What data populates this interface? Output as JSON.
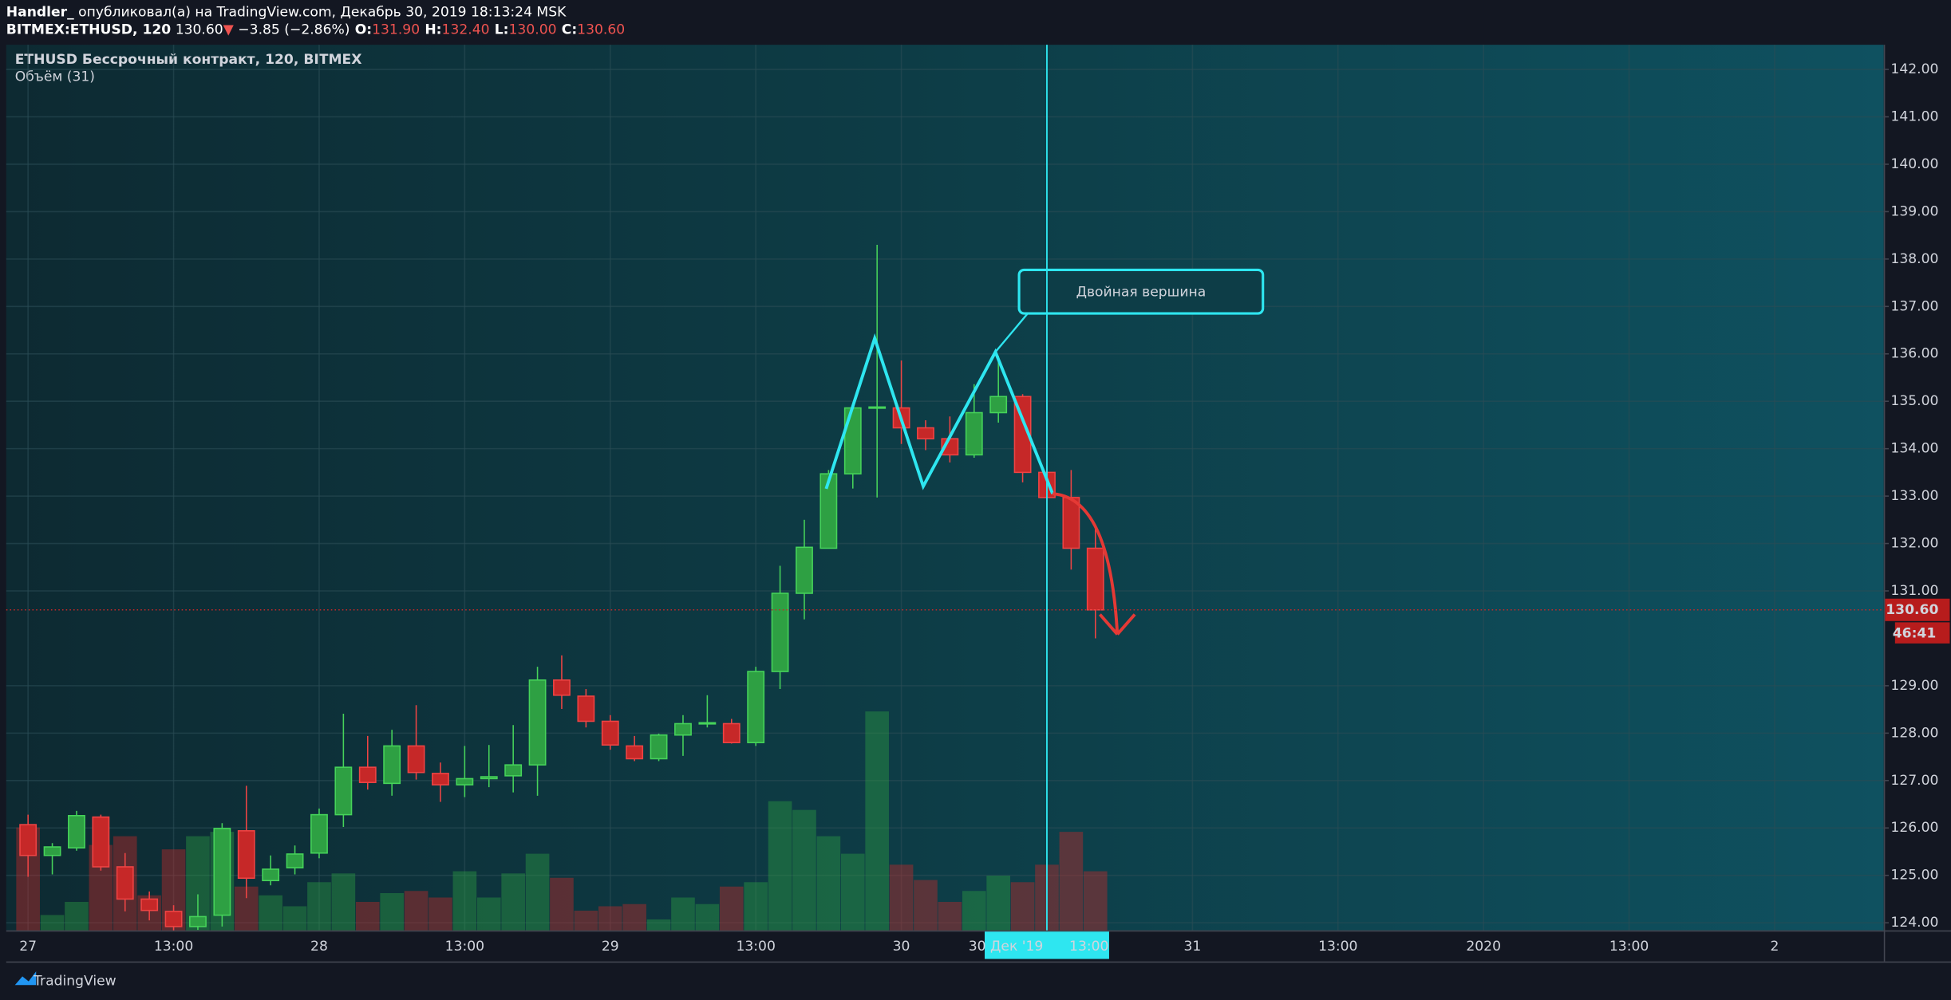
{
  "header": {
    "author": "Handler_",
    "published": "опубликовал(а) на TradingView.com, Декабрь 30, 2019 18:13:24 MSK",
    "symbol": "BITMEX:ETHUSD, 120",
    "last": "130.60",
    "arrow": "▼",
    "change": "−3.85 (−2.86%)",
    "ohlc": [
      {
        "key": "O:",
        "value": "131.90"
      },
      {
        "key": "H:",
        "value": "132.40"
      },
      {
        "key": "L:",
        "value": "130.00"
      },
      {
        "key": "C:",
        "value": "130.60"
      }
    ]
  },
  "chart_data": {
    "type": "candlestick",
    "title": "ETHUSD Бессрочный контракт, 120, BITMEX",
    "volume_title": "Объём (31)",
    "open": [
      126.07,
      125.42,
      125.58,
      126.23,
      125.18,
      124.5,
      124.24,
      123.92,
      124.16,
      125.94,
      124.89,
      125.16,
      125.47,
      126.28,
      127.28,
      126.94,
      127.73,
      127.15,
      126.91,
      127.04,
      127.1,
      127.33,
      129.12,
      128.78,
      128.25,
      127.73,
      127.46,
      127.96,
      128.2,
      128.2,
      127.8,
      129.3,
      130.95,
      131.9,
      133.47,
      134.86,
      134.86,
      134.44,
      134.21,
      133.87,
      134.76,
      135.1,
      133.5,
      132.97,
      131.9
    ],
    "high": [
      126.28,
      125.68,
      126.36,
      126.28,
      125.47,
      124.66,
      124.37,
      124.6,
      126.1,
      126.89,
      125.42,
      125.63,
      126.41,
      128.41,
      127.94,
      128.07,
      128.59,
      127.38,
      127.73,
      127.75,
      128.17,
      129.4,
      129.64,
      128.93,
      128.38,
      127.94,
      127.99,
      128.38,
      128.8,
      128.3,
      129.4,
      131.53,
      132.5,
      133.55,
      134.94,
      138.3,
      135.86,
      134.6,
      134.68,
      135.36,
      135.96,
      135.15,
      133.63,
      133.55,
      132.4
    ],
    "low": [
      124.97,
      125.02,
      125.52,
      125.1,
      124.24,
      124.05,
      123.84,
      123.85,
      123.92,
      124.52,
      124.79,
      125.02,
      125.36,
      126.02,
      126.81,
      126.68,
      127.02,
      126.55,
      126.65,
      126.86,
      126.75,
      126.68,
      128.51,
      128.12,
      127.65,
      127.41,
      127.41,
      127.52,
      128.12,
      127.78,
      127.73,
      128.93,
      130.4,
      131.9,
      133.16,
      132.97,
      134.1,
      133.97,
      133.71,
      133.81,
      134.55,
      133.29,
      132.24,
      131.45,
      130.0
    ],
    "close": [
      125.42,
      125.6,
      126.26,
      125.18,
      124.5,
      124.26,
      123.92,
      124.13,
      125.99,
      124.94,
      125.13,
      125.45,
      126.28,
      127.28,
      126.96,
      127.73,
      127.17,
      126.91,
      127.04,
      127.08,
      127.33,
      129.12,
      128.8,
      128.25,
      127.75,
      127.46,
      127.96,
      128.2,
      128.22,
      127.8,
      129.3,
      130.95,
      131.92,
      133.47,
      134.86,
      134.88,
      134.44,
      134.21,
      133.87,
      134.76,
      135.1,
      133.5,
      132.97,
      131.9,
      130.6
    ],
    "volume": [
      47,
      7,
      13,
      39,
      43,
      16,
      37,
      43,
      45,
      20,
      16,
      11,
      22,
      26,
      13,
      17,
      18,
      15,
      27,
      15,
      26,
      35,
      24,
      9,
      11,
      12,
      5,
      15,
      12,
      20,
      22,
      59,
      55,
      43,
      35,
      100,
      30,
      23,
      13,
      18,
      25,
      22,
      30,
      45,
      27
    ],
    "volume_lim": [
      0,
      100
    ],
    "up_color": "#2ea043",
    "down_color": "#c62828",
    "xlim": [
      -0.9,
      76.5
    ],
    "xticks": [
      {
        "value": 0,
        "label": "27"
      },
      {
        "value": 6,
        "label": "13:00"
      },
      {
        "value": 12,
        "label": "28"
      },
      {
        "value": 18,
        "label": "13:00"
      },
      {
        "value": 24,
        "label": "29"
      },
      {
        "value": 30,
        "label": "13:00"
      },
      {
        "value": 36,
        "label": "30"
      },
      {
        "value": 48,
        "label": "31"
      },
      {
        "value": 54,
        "label": "13:00"
      },
      {
        "value": 60,
        "label": "2020"
      },
      {
        "value": 66,
        "label": "13:00"
      },
      {
        "value": 72,
        "label": "2"
      }
    ],
    "ylim": [
      123.84,
      142.52
    ],
    "yticks": [
      {
        "value": 124,
        "label": "124.00"
      },
      {
        "value": 125,
        "label": "125.00"
      },
      {
        "value": 126,
        "label": "126.00"
      },
      {
        "value": 127,
        "label": "127.00"
      },
      {
        "value": 128,
        "label": "128.00"
      },
      {
        "value": 129,
        "label": "129.00"
      },
      {
        "value": 131,
        "label": "131.00"
      },
      {
        "value": 132,
        "label": "132.00"
      },
      {
        "value": 133,
        "label": "133.00"
      },
      {
        "value": 134,
        "label": "134.00"
      },
      {
        "value": 135,
        "label": "135.00"
      },
      {
        "value": 136,
        "label": "136.00"
      },
      {
        "value": 137,
        "label": "137.00"
      },
      {
        "value": 138,
        "label": "138.00"
      },
      {
        "value": 139,
        "label": "139.00"
      },
      {
        "value": 140,
        "label": "140.00"
      },
      {
        "value": 141,
        "label": "141.00"
      },
      {
        "value": 142,
        "label": "142.00"
      }
    ],
    "grid": true,
    "last_price": {
      "value": 130.6,
      "label": "130.60"
    },
    "countdown": "46:41",
    "crosshair": {
      "value": 42,
      "date": "30 Дек '19",
      "time": "13:00"
    },
    "annotation": "Двойная вершина"
  },
  "footer": {
    "brand": "TradingView"
  }
}
